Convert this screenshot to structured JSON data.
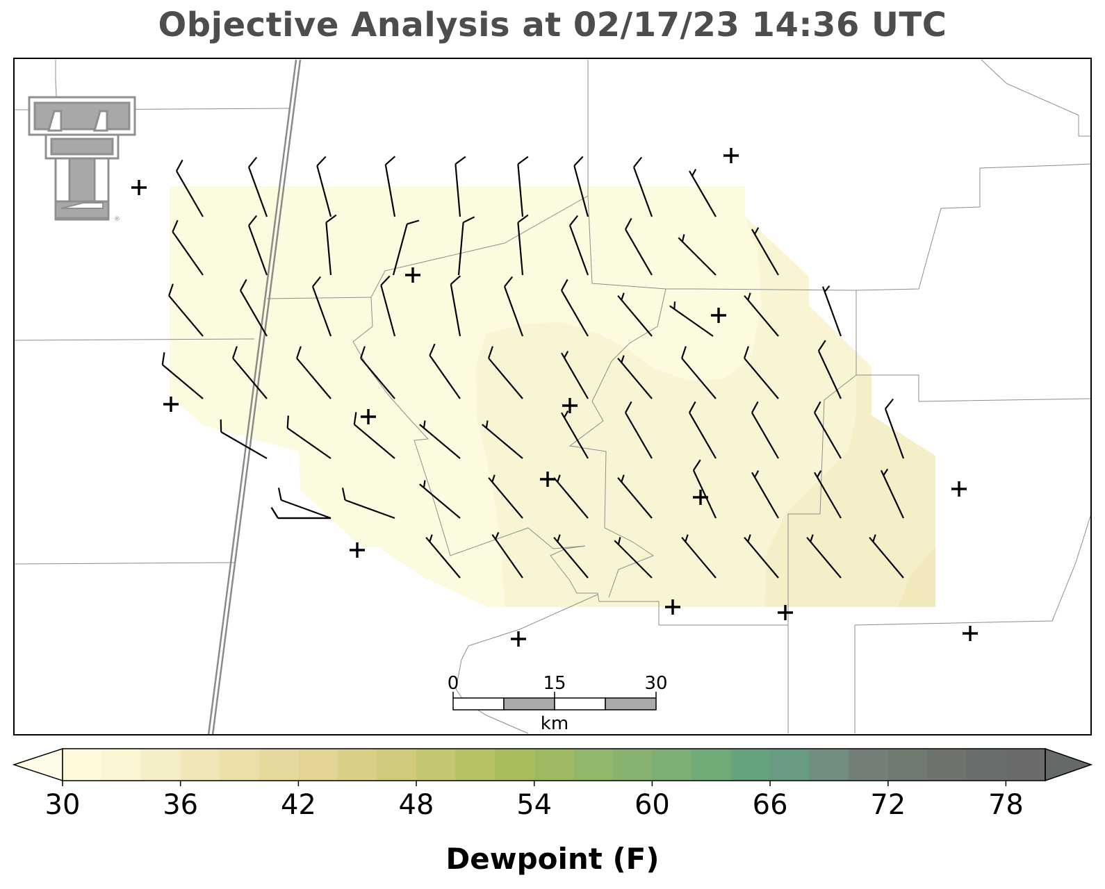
{
  "title": "Objective Analysis at 02/17/23 14:36 UTC",
  "logo": {
    "name": "texas-tech-double-t-logo"
  },
  "scalebar": {
    "ticks": [
      "0",
      "15",
      "30"
    ],
    "unit": "km"
  },
  "colorbar": {
    "label": "Dewpoint (F)",
    "min": 30,
    "max": 80,
    "step": 2,
    "extend": "both",
    "tick_labels": [
      "30",
      "36",
      "42",
      "48",
      "54",
      "60",
      "66",
      "72",
      "78"
    ],
    "colors": [
      "#fdfad9",
      "#faf5d2",
      "#f5edc5",
      "#f1e6b8",
      "#ece0aa",
      "#e6d99d",
      "#e2d493",
      "#d9cf86",
      "#cfcb7a",
      "#c4c670",
      "#b7c166",
      "#aabd5e",
      "#9dba63",
      "#91b76a",
      "#87b26f",
      "#7caf73",
      "#70aa77",
      "#67a27e",
      "#699b83",
      "#728e81",
      "#737f77",
      "#707a71",
      "#6e746d",
      "#6b6f6b",
      "#696c68"
    ],
    "under_color": "#fefce6",
    "over_color": "#666a66"
  },
  "dewpoint_field": {
    "levels": [
      {
        "dewpoint_f": 31,
        "color": "#fdfbdf"
      },
      {
        "dewpoint_f": 33,
        "color": "#f9f5d4"
      },
      {
        "dewpoint_f": 35,
        "color": "#f5efc9"
      },
      {
        "dewpoint_f": 37,
        "color": "#f1e8bc"
      }
    ]
  },
  "wind_barbs_note": "station plot grid",
  "stations": "calm / missing wind stations shown as + markers"
}
